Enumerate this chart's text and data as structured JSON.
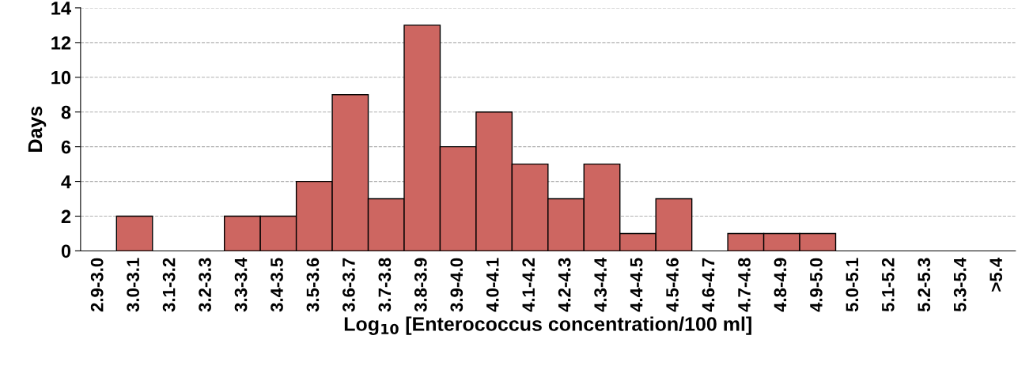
{
  "chart_data": {
    "type": "bar",
    "xlabel": "Log$_{10}$ [Enterococcus concentration/100 ml]",
    "ylabel": "Days",
    "categories": [
      "2.9-3.0",
      "3.0-3.1",
      "3.1-3.2",
      "3.2-3.3",
      "3.3-3.4",
      "3.4-3.5",
      "3.5-3.6",
      "3.6-3.7",
      "3.7-3.8",
      "3.8-3.9",
      "3.9-4.0",
      "4.0-4.1",
      "4.1-4.2",
      "4.2-4.3",
      "4.3-4.4",
      "4.4-4.5",
      "4.5-4.6",
      "4.6-4.7",
      "4.7-4.8",
      "4.8-4.9",
      "4.9-5.0",
      "5.0-5.1",
      "5.1-5.2",
      "5.2-5.3",
      "5.3-5.4",
      ">5.4"
    ],
    "values": [
      0,
      2,
      0,
      0,
      2,
      2,
      4,
      9,
      3,
      13,
      6,
      8,
      5,
      3,
      5,
      1,
      3,
      0,
      1,
      1,
      1,
      0,
      0,
      0,
      0,
      0
    ],
    "color": "#cd6661",
    "ylim": [
      0,
      14
    ],
    "yticks": [
      0,
      2,
      4,
      6,
      8,
      10,
      12,
      14
    ],
    "grid": "y",
    "legend": false
  }
}
